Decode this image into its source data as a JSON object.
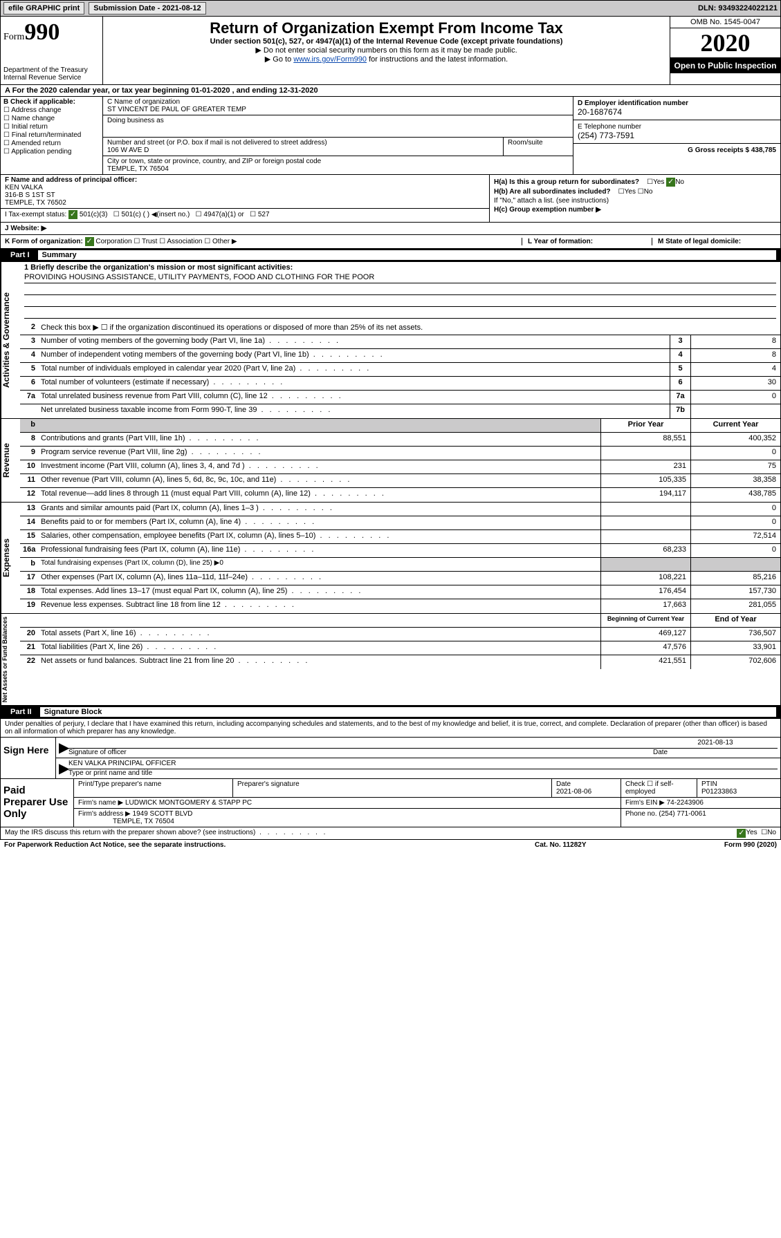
{
  "topbar": {
    "efile_btn": "efile GRAPHIC print",
    "subdate_label": "Submission Date - 2021-08-12",
    "dln_label": "DLN: 93493224022121"
  },
  "header": {
    "form_label": "Form",
    "form_num": "990",
    "dept": "Department of the Treasury\nInternal Revenue Service",
    "title": "Return of Organization Exempt From Income Tax",
    "subtitle": "Under section 501(c), 527, or 4947(a)(1) of the Internal Revenue Code (except private foundations)",
    "note1": "▶ Do not enter social security numbers on this form as it may be made public.",
    "note2_pre": "▶ Go to ",
    "note2_link": "www.irs.gov/Form990",
    "note2_post": " for instructions and the latest information.",
    "omb": "OMB No. 1545-0047",
    "year": "2020",
    "inspect": "Open to Public Inspection"
  },
  "line_a": "A  For the 2020 calendar year, or tax year beginning 01-01-2020    , and ending 12-31-2020",
  "col_b": {
    "header": "B Check if applicable:",
    "opts": [
      "Address change",
      "Name change",
      "Initial return",
      "Final return/terminated",
      "Amended return",
      "Application pending"
    ]
  },
  "col_c": {
    "name_lbl": "C Name of organization",
    "name": "ST VINCENT DE PAUL OF GREATER TEMP",
    "dba_lbl": "Doing business as",
    "addr_lbl": "Number and street (or P.O. box if mail is not delivered to street address)",
    "room_lbl": "Room/suite",
    "addr": "106 W AVE D",
    "city_lbl": "City or town, state or province, country, and ZIP or foreign postal code",
    "city": "TEMPLE, TX  76504"
  },
  "col_de": {
    "d_lbl": "D Employer identification number",
    "d_val": "20-1687674",
    "e_lbl": "E Telephone number",
    "e_val": "(254) 773-7591",
    "g_lbl": "G Gross receipts $ 438,785"
  },
  "col_f": {
    "lbl": "F  Name and address of principal officer:",
    "name": "KEN VALKA",
    "addr1": "316-B S 1ST ST",
    "addr2": "TEMPLE, TX  76502"
  },
  "col_h": {
    "ha": "H(a)  Is this a group return for subordinates?",
    "hb": "H(b)  Are all subordinates included?",
    "hb_note": "If \"No,\" attach a list. (see instructions)",
    "hc": "H(c)  Group exemption number ▶",
    "yes": "Yes",
    "no": "No"
  },
  "line_i": {
    "lbl": "I    Tax-exempt status:",
    "o1": "501(c)(3)",
    "o2": "501(c) (  ) ◀(insert no.)",
    "o3": "4947(a)(1) or",
    "o4": "527"
  },
  "line_j": "J   Website: ▶",
  "line_k": {
    "lbl": "K Form of organization:",
    "o1": "Corporation",
    "o2": "Trust",
    "o3": "Association",
    "o4": "Other ▶",
    "l": "L Year of formation:",
    "m": "M State of legal domicile:"
  },
  "part1": {
    "num": "Part I",
    "title": "Summary"
  },
  "summary": {
    "s1_label": "1   Briefly describe the organization's mission or most significant activities:",
    "s1_val": "PROVIDING HOUSING ASSISTANCE, UTILITY PAYMENTS, FOOD AND CLOTHING FOR THE POOR",
    "s2": "Check this box ▶ ☐  if the organization discontinued its operations or disposed of more than 25% of its net assets.",
    "rows_gov": [
      {
        "n": "3",
        "d": "Number of voting members of the governing body (Part VI, line 1a)",
        "b": "3",
        "v": "8"
      },
      {
        "n": "4",
        "d": "Number of independent voting members of the governing body (Part VI, line 1b)",
        "b": "4",
        "v": "8"
      },
      {
        "n": "5",
        "d": "Total number of individuals employed in calendar year 2020 (Part V, line 2a)",
        "b": "5",
        "v": "4"
      },
      {
        "n": "6",
        "d": "Total number of volunteers (estimate if necessary)",
        "b": "6",
        "v": "30"
      },
      {
        "n": "7a",
        "d": "Total unrelated business revenue from Part VIII, column (C), line 12",
        "b": "7a",
        "v": "0"
      },
      {
        "n": "",
        "d": "Net unrelated business taxable income from Form 990-T, line 39",
        "b": "7b",
        "v": ""
      }
    ],
    "hdr_prior": "Prior Year",
    "hdr_current": "Current Year",
    "rows_rev": [
      {
        "n": "8",
        "d": "Contributions and grants (Part VIII, line 1h)",
        "p": "88,551",
        "c": "400,352"
      },
      {
        "n": "9",
        "d": "Program service revenue (Part VIII, line 2g)",
        "p": "",
        "c": "0"
      },
      {
        "n": "10",
        "d": "Investment income (Part VIII, column (A), lines 3, 4, and 7d )",
        "p": "231",
        "c": "75"
      },
      {
        "n": "11",
        "d": "Other revenue (Part VIII, column (A), lines 5, 6d, 8c, 9c, 10c, and 11e)",
        "p": "105,335",
        "c": "38,358"
      },
      {
        "n": "12",
        "d": "Total revenue—add lines 8 through 11 (must equal Part VIII, column (A), line 12)",
        "p": "194,117",
        "c": "438,785"
      }
    ],
    "rows_exp": [
      {
        "n": "13",
        "d": "Grants and similar amounts paid (Part IX, column (A), lines 1–3 )",
        "p": "",
        "c": "0"
      },
      {
        "n": "14",
        "d": "Benefits paid to or for members (Part IX, column (A), line 4)",
        "p": "",
        "c": "0"
      },
      {
        "n": "15",
        "d": "Salaries, other compensation, employee benefits (Part IX, column (A), lines 5–10)",
        "p": "",
        "c": "72,514"
      },
      {
        "n": "16a",
        "d": "Professional fundraising fees (Part IX, column (A), line 11e)",
        "p": "68,233",
        "c": "0"
      },
      {
        "n": "b",
        "d": "Total fundraising expenses (Part IX, column (D), line 25) ▶0",
        "p": "shade",
        "c": "shade"
      },
      {
        "n": "17",
        "d": "Other expenses (Part IX, column (A), lines 11a–11d, 11f–24e)",
        "p": "108,221",
        "c": "85,216"
      },
      {
        "n": "18",
        "d": "Total expenses. Add lines 13–17 (must equal Part IX, column (A), line 25)",
        "p": "176,454",
        "c": "157,730"
      },
      {
        "n": "19",
        "d": "Revenue less expenses. Subtract line 18 from line 12",
        "p": "17,663",
        "c": "281,055"
      }
    ],
    "hdr_beg": "Beginning of Current Year",
    "hdr_end": "End of Year",
    "rows_net": [
      {
        "n": "20",
        "d": "Total assets (Part X, line 16)",
        "p": "469,127",
        "c": "736,507"
      },
      {
        "n": "21",
        "d": "Total liabilities (Part X, line 26)",
        "p": "47,576",
        "c": "33,901"
      },
      {
        "n": "22",
        "d": "Net assets or fund balances. Subtract line 21 from line 20",
        "p": "421,551",
        "c": "702,606"
      }
    ],
    "vtabs": [
      "Activities & Governance",
      "Revenue",
      "Expenses",
      "Net Assets or Fund Balances"
    ]
  },
  "part2": {
    "num": "Part II",
    "title": "Signature Block"
  },
  "sig": {
    "penalty": "Under penalties of perjury, I declare that I have examined this return, including accompanying schedules and statements, and to the best of my knowledge and belief, it is true, correct, and complete. Declaration of preparer (other than officer) is based on all information of which preparer has any knowledge.",
    "sign_here": "Sign Here",
    "sig_officer": "Signature of officer",
    "date1": "2021-08-13",
    "date_lbl": "Date",
    "name_title": "KEN VALKA  PRINCIPAL OFFICER",
    "name_title_lbl": "Type or print name and title"
  },
  "prep": {
    "label": "Paid Preparer Use Only",
    "h1": "Print/Type preparer's name",
    "h2": "Preparer's signature",
    "h3": "Date",
    "h3v": "2021-08-06",
    "h4": "Check ☐ if self-employed",
    "h5": "PTIN",
    "h5v": "P01233863",
    "firm_name_lbl": "Firm's name      ▶",
    "firm_name": "LUDWICK MONTGOMERY & STAPP PC",
    "firm_ein_lbl": "Firm's EIN ▶",
    "firm_ein": "74-2243906",
    "firm_addr_lbl": "Firm's address  ▶",
    "firm_addr1": "1949 SCOTT BLVD",
    "firm_addr2": "TEMPLE, TX  76504",
    "phone_lbl": "Phone no.",
    "phone": "(254) 771-0061"
  },
  "bottom": {
    "q": "May the IRS discuss this return with the preparer shown above? (see instructions)",
    "yes": "Yes",
    "no": "No"
  },
  "footer": {
    "left": "For Paperwork Reduction Act Notice, see the separate instructions.",
    "mid": "Cat. No. 11282Y",
    "right": "Form 990 (2020)"
  }
}
